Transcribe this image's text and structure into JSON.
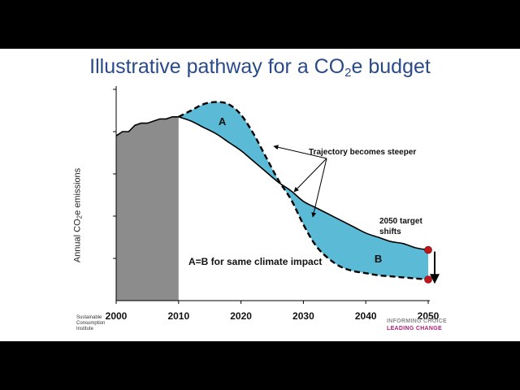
{
  "slide": {
    "title_prefix": "Illustrative pathway for a CO",
    "title_sub": "2",
    "title_suffix": "e budget",
    "logo_left": [
      "Sustainable",
      "Consumption",
      "Institute"
    ],
    "logo_right": [
      "INFORMING CHOICE",
      "LEADING CHANGE"
    ],
    "colors": {
      "background_frame": "#000000",
      "slide_bg": "#ffffff",
      "title": "#2a4a8a",
      "historical_fill": "#8c8c8c",
      "area_fill": "#5bbad5",
      "marker": "#c0161c",
      "logo_accent": "#b0207a"
    }
  },
  "chart_data": {
    "type": "area",
    "xlabel": "",
    "ylabel_prefix": "Annual CO",
    "ylabel_sub": "2",
    "ylabel_suffix": "e emissions",
    "x_ticks": [
      2000,
      2010,
      2020,
      2030,
      2040,
      2050
    ],
    "xlim": [
      2000,
      2050
    ],
    "ylim": [
      0,
      100
    ],
    "y_tick_count": 5,
    "historical": {
      "x": [
        2000,
        2001,
        2002,
        2003,
        2004,
        2005,
        2006,
        2007,
        2008,
        2009,
        2010
      ],
      "y": [
        78,
        80,
        80,
        83,
        84,
        84,
        85,
        86,
        86,
        87,
        87
      ]
    },
    "series": [
      {
        "style": "solid",
        "x": [
          2010,
          2012,
          2014,
          2016,
          2018,
          2020,
          2022,
          2024,
          2026,
          2028,
          2030,
          2032,
          2034,
          2036,
          2038,
          2040,
          2042,
          2044,
          2046,
          2048,
          2050
        ],
        "y": [
          87,
          85,
          82,
          79,
          75,
          71,
          66,
          61,
          56,
          52,
          47,
          44,
          41,
          38,
          35,
          32,
          30,
          28,
          27,
          25,
          24
        ]
      },
      {
        "style": "dashed",
        "x": [
          2010,
          2012,
          2014,
          2016,
          2018,
          2020,
          2022,
          2024,
          2026,
          2028,
          2030,
          2032,
          2034,
          2036,
          2038,
          2040,
          2042,
          2044,
          2046,
          2048,
          2050
        ],
        "y": [
          87,
          90,
          93,
          94,
          93,
          88,
          79,
          68,
          57,
          48,
          36,
          26,
          20,
          16,
          14,
          13,
          12,
          11.5,
          11,
          10.5,
          10
        ]
      }
    ],
    "areas": [
      {
        "label": "A",
        "x": 2017,
        "y": 83
      },
      {
        "label": "B",
        "x": 2042,
        "y": 18
      }
    ],
    "markers": [
      {
        "x": 2050,
        "y": 24
      },
      {
        "x": 2050,
        "y": 10
      }
    ],
    "annotations": {
      "steeper": "Trajectory becomes steeper",
      "target": [
        "2050 target",
        "shifts"
      ],
      "equal": "A=B for same climate impact"
    }
  }
}
